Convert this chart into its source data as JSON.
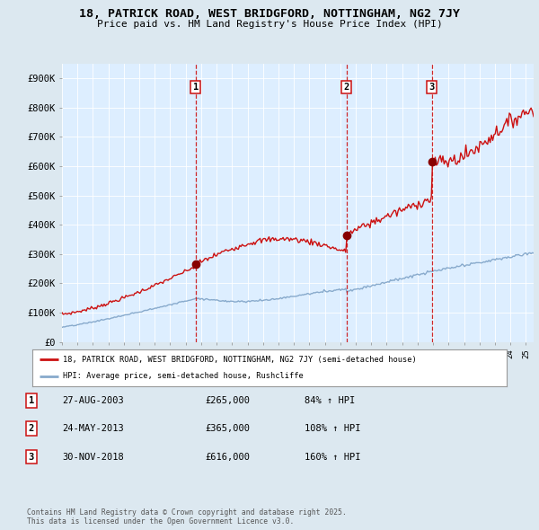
{
  "title": "18, PATRICK ROAD, WEST BRIDGFORD, NOTTINGHAM, NG2 7JY",
  "subtitle": "Price paid vs. HM Land Registry's House Price Index (HPI)",
  "bg_color": "#dce8f0",
  "plot_bg_color": "#ddeeff",
  "ylim": [
    0,
    950000
  ],
  "yticks": [
    0,
    100000,
    200000,
    300000,
    400000,
    500000,
    600000,
    700000,
    800000,
    900000
  ],
  "ytick_labels": [
    "£0",
    "£100K",
    "£200K",
    "£300K",
    "£400K",
    "£500K",
    "£600K",
    "£700K",
    "£800K",
    "£900K"
  ],
  "xstart": 1995,
  "xend": 2025.5,
  "sale_dates": [
    2003.65,
    2013.39,
    2018.92
  ],
  "sale_prices": [
    265000,
    365000,
    616000
  ],
  "sale_labels": [
    "1",
    "2",
    "3"
  ],
  "red_line_color": "#cc1111",
  "blue_line_color": "#88aacc",
  "sale_marker_color": "#880000",
  "vline_color": "#cc1111",
  "legend_entry1": "18, PATRICK ROAD, WEST BRIDGFORD, NOTTINGHAM, NG2 7JY (semi-detached house)",
  "legend_entry2": "HPI: Average price, semi-detached house, Rushcliffe",
  "table_data": [
    {
      "num": "1",
      "date": "27-AUG-2003",
      "price": "£265,000",
      "hpi": "84% ↑ HPI"
    },
    {
      "num": "2",
      "date": "24-MAY-2013",
      "price": "£365,000",
      "hpi": "108% ↑ HPI"
    },
    {
      "num": "3",
      "date": "30-NOV-2018",
      "price": "£616,000",
      "hpi": "160% ↑ HPI"
    }
  ],
  "footnote": "Contains HM Land Registry data © Crown copyright and database right 2025.\nThis data is licensed under the Open Government Licence v3.0."
}
